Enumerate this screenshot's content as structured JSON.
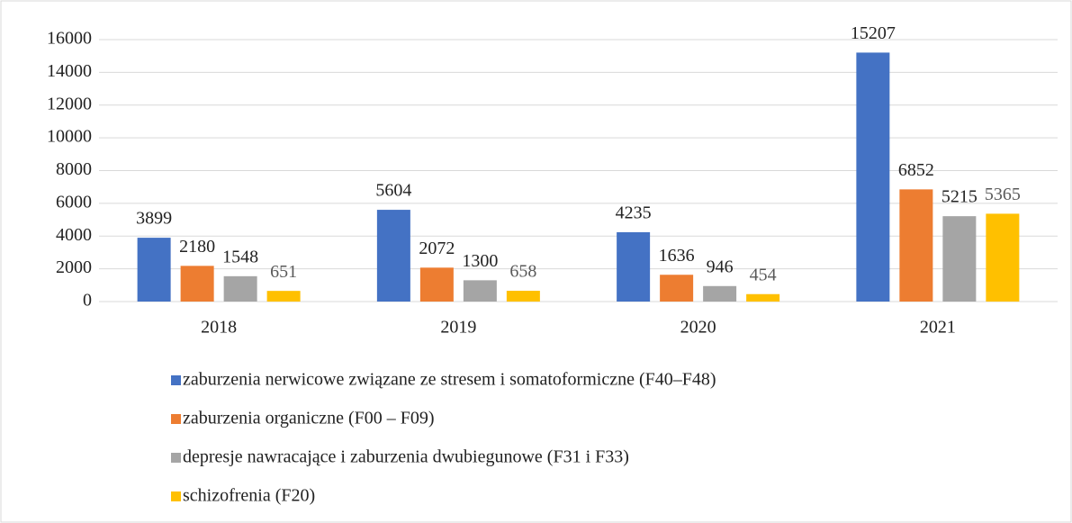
{
  "chart_data": {
    "type": "bar",
    "categories": [
      "2018",
      "2019",
      "2020",
      "2021"
    ],
    "series": [
      {
        "name": "zaburzenia nerwicowe związane ze stresem i somatoformiczne (F40–F48)",
        "color": "#4472c4",
        "values": [
          3899,
          5604,
          4235,
          15207
        ]
      },
      {
        "name": "zaburzenia organiczne (F00 – F09)",
        "color": "#ed7d31",
        "values": [
          2180,
          2072,
          1636,
          6852
        ]
      },
      {
        "name": "depresje nawracające i zaburzenia dwubiegunowe (F31 i F33)",
        "color": "#a5a5a5",
        "values": [
          1548,
          1300,
          946,
          5215
        ]
      },
      {
        "name": "schizofrenia (F20)",
        "color": "#ffc000",
        "values": [
          651,
          658,
          454,
          5365
        ]
      }
    ],
    "ylim": [
      0,
      16000
    ],
    "yticks": [
      0,
      2000,
      4000,
      6000,
      8000,
      10000,
      12000,
      14000,
      16000
    ],
    "grid": true,
    "legend": "bottom"
  }
}
